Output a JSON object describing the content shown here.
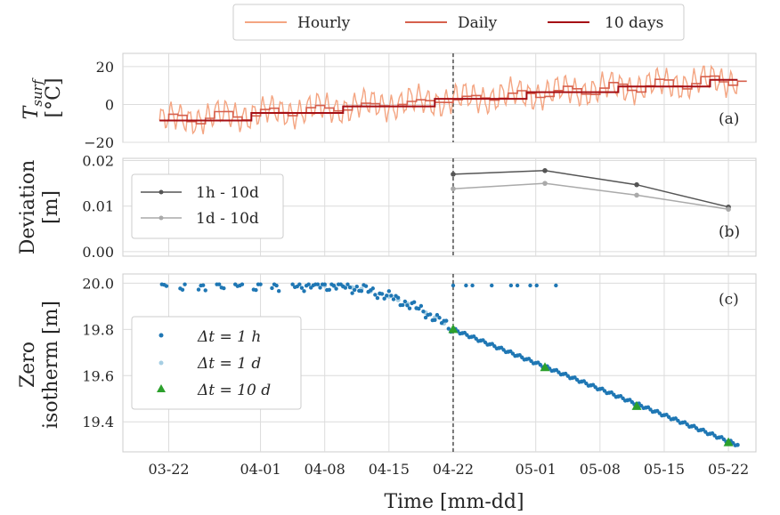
{
  "chart_data": [
    {
      "panel": "a",
      "type": "line",
      "ylabel_main": "T",
      "ylabel_sub": "surf",
      "ylabel_unit": "[°C]",
      "ylim": [
        -20,
        27
      ],
      "yticks": [
        -20,
        0,
        20
      ],
      "ytick_labels": [
        "−20",
        "0",
        "20"
      ],
      "panel_label": "(a)",
      "legend": {
        "placement": "top-center",
        "entries": [
          "Hourly",
          "Daily",
          "10 days"
        ]
      },
      "series": [
        {
          "name": "Hourly",
          "color": "#f4a582",
          "kind": "hourly",
          "trend_start": -8.5,
          "trend_end": 13.5,
          "start": "2024-03-21",
          "end": "2024-05-23"
        },
        {
          "name": "Daily",
          "color": "#d6604d",
          "kind": "daily",
          "trend_start": -8.5,
          "trend_end": 13.5,
          "start": "2024-03-21",
          "end": "2024-05-23"
        },
        {
          "name": "10 days",
          "color": "#a50f15",
          "kind": "steps",
          "dates": [
            "2024-03-21",
            "2024-03-31",
            "2024-04-10",
            "2024-04-20",
            "2024-04-30",
            "2024-05-10",
            "2024-05-20",
            "2024-05-23"
          ],
          "values": [
            -8.5,
            -4.5,
            -1,
            3,
            6.5,
            9.5,
            13,
            13
          ]
        }
      ],
      "vline": "2024-04-22"
    },
    {
      "panel": "b",
      "type": "line",
      "ylabel": "Deviation\n[m]",
      "ylabel_lines": [
        "Deviation",
        "[m]"
      ],
      "ylim": [
        -0.001,
        0.0205
      ],
      "yticks": [
        0.0,
        0.01,
        0.02
      ],
      "ytick_labels": [
        "0.00",
        "0.01",
        "0.02"
      ],
      "panel_label": "(b)",
      "legend": {
        "placement": "upper-left",
        "entries": [
          "1h - 10d",
          "1d - 10d"
        ]
      },
      "series": [
        {
          "name": "1h - 10d",
          "color": "#555555",
          "dates": [
            "2024-04-22",
            "2024-05-02",
            "2024-05-12",
            "2024-05-22"
          ],
          "values": [
            0.017,
            0.0178,
            0.0147,
            0.0098
          ]
        },
        {
          "name": "1d - 10d",
          "color": "#aaaaaa",
          "dates": [
            "2024-04-22",
            "2024-05-02",
            "2024-05-12",
            "2024-05-22"
          ],
          "values": [
            0.0138,
            0.015,
            0.0124,
            0.0093
          ]
        }
      ],
      "vline": "2024-04-22"
    },
    {
      "panel": "c",
      "type": "scatter",
      "ylabel_lines": [
        "Zero",
        "isotherm [m]"
      ],
      "ylim": [
        19.27,
        20.04
      ],
      "yticks": [
        19.4,
        19.6,
        19.8,
        20.0
      ],
      "ytick_labels": [
        "19.4",
        "19.6",
        "19.8",
        "20.0"
      ],
      "panel_label": "(c)",
      "legend": {
        "placement": "center-left",
        "entries": [
          "Δt = 1 h",
          "Δt = 1 d",
          "Δt = 10 d"
        ]
      },
      "series": [
        {
          "name": "Δt = 1 h",
          "color": "#1f77b4",
          "kind": "hourly",
          "start_y": 19.99,
          "end_y": 19.3
        },
        {
          "name": "Δt = 1 d",
          "color": "#a6cee3",
          "kind": "daily",
          "start_y": 19.99,
          "end_y": 19.3
        },
        {
          "name": "Δt = 10 d",
          "color": "#2ca02c",
          "dates": [
            "2024-04-22",
            "2024-05-02",
            "2024-05-12",
            "2024-05-22"
          ],
          "values": [
            19.8,
            19.635,
            19.467,
            19.31
          ]
        }
      ],
      "vline": "2024-04-22"
    }
  ],
  "x_axis": {
    "xlabel": "Time [mm-dd]",
    "xlim": [
      "2024-03-17",
      "2024-05-25"
    ],
    "ticks": [
      "2024-03-22",
      "2024-04-01",
      "2024-04-08",
      "2024-04-15",
      "2024-04-22",
      "2024-05-01",
      "2024-05-08",
      "2024-05-15",
      "2024-05-22"
    ],
    "tick_labels": [
      "03-22",
      "04-01",
      "04-08",
      "04-15",
      "04-22",
      "05-01",
      "05-08",
      "05-15",
      "05-22"
    ]
  }
}
